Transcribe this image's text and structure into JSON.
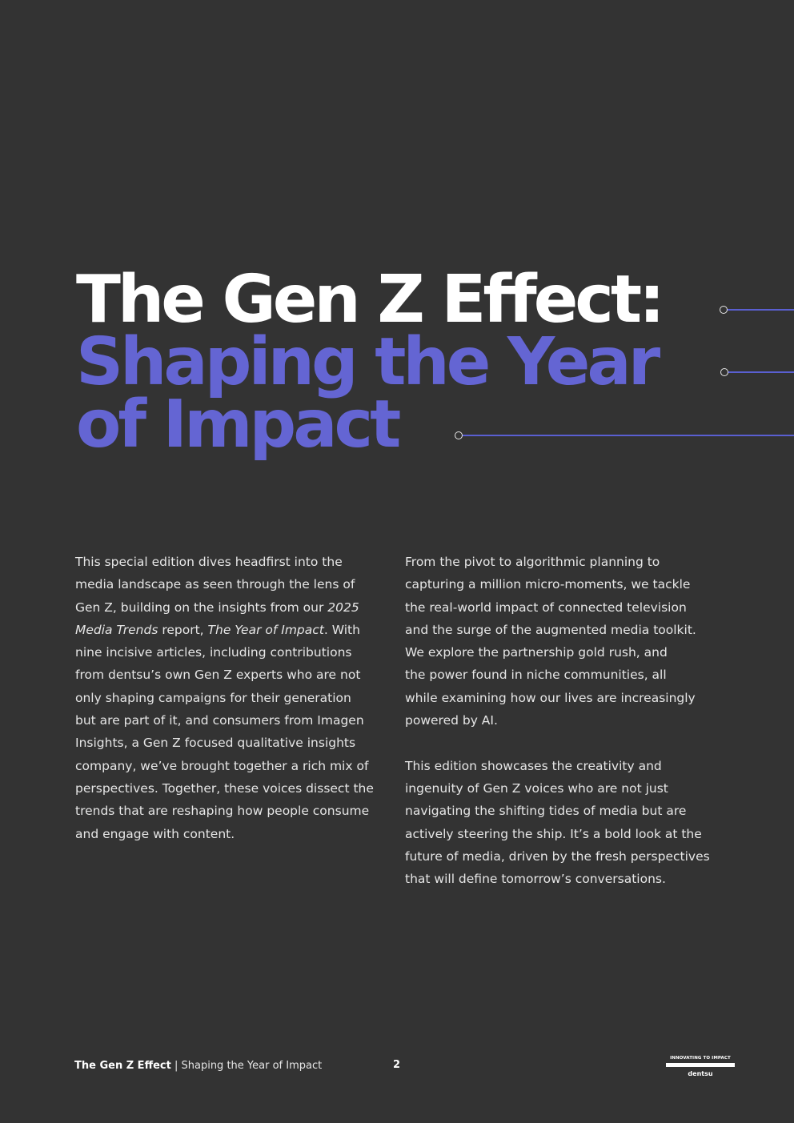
{
  "title": {
    "line1": "The Gen Z Effect:",
    "line2": "Shaping the Year",
    "line3": "of Impact"
  },
  "colors": {
    "background": "#333333",
    "accent": "#6465d3",
    "connector": "#5a5fd1"
  },
  "left_column": {
    "l1": "This special edition dives headfirst into the",
    "l2": "media landscape as seen through the lens of",
    "l3": "Gen Z, building on the insights from our",
    "l3_italic": "2025",
    "l4_italic": "Media Trends",
    "l4_mid": " report, ",
    "l4_italic2": "The Year of Impact",
    "l4_end": ".  With",
    "l5": "nine incisive articles, including contributions",
    "l6": "from dentsu’s own Gen Z experts who are not",
    "l7": "only shaping campaigns for their generation",
    "l8": "but are part of it, and consumers from Imagen",
    "l9": "Insights, a Gen Z focused qualitative insights",
    "l10": "company, we’ve brought together a rich mix of",
    "l11": "perspectives. Together, these voices dissect the",
    "l12": "trends that are reshaping how people consume",
    "l13": "and engage with content."
  },
  "right_column": {
    "p1": [
      "From the pivot to algorithmic planning to",
      "capturing a million micro-moments, we tackle",
      "the real-world impact of connected television",
      "and the surge of the augmented media toolkit.",
      "We explore the partnership gold rush, and",
      "the power found in niche communities, all",
      "while examining how our lives are increasingly",
      "powered by AI."
    ],
    "p2": [
      "This edition showcases the creativity and",
      "ingenuity of Gen Z voices who are not just",
      "navigating the shifting tides of media but are",
      "actively steering the ship. It’s a bold look at the",
      "future of media, driven by the fresh perspectives",
      "that will define tomorrow’s conversations."
    ]
  },
  "footer": {
    "title_bold": "The Gen Z Effect",
    "separator": " | ",
    "subtitle": "Shaping the Year of Impact",
    "page_number": "2",
    "logo_tagline": "INNOVATING TO IMPACT",
    "logo_brand": "dentsu"
  }
}
